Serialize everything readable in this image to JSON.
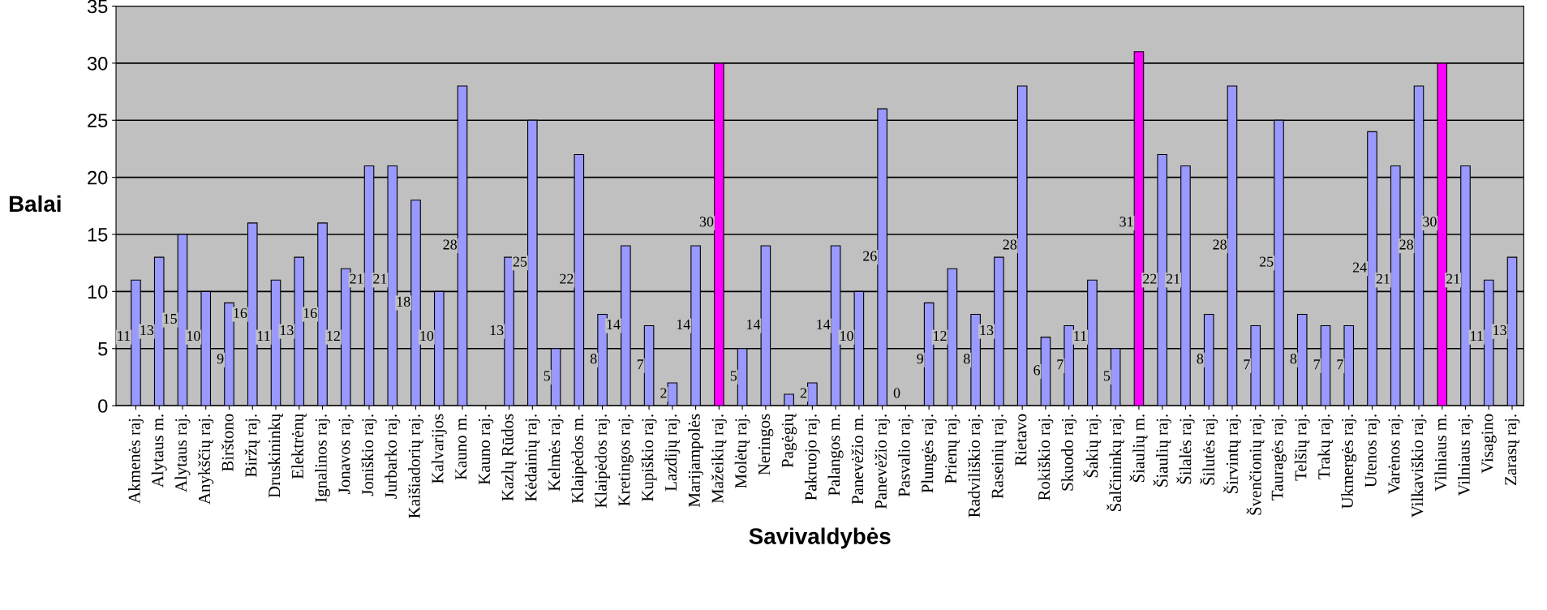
{
  "chart_data": {
    "type": "bar",
    "xlabel": "Savivaldybės",
    "ylabel": "Balai",
    "categories": [
      "Akmenės raj.",
      "Alytaus m.",
      "Alytaus raj.",
      "Anykščių raj.",
      "Birštono",
      "Biržų raj.",
      "Druskininkų",
      "Elektrėnų",
      "Ignalinos raj.",
      "Jonavos raj.",
      "Joniškio raj.",
      "Jurbarko raj.",
      "Kaišiadorių raj.",
      "Kalvarijos",
      "Kauno m.",
      "Kauno raj.",
      "Kazlų Rūdos",
      "Kėdainių raj.",
      "Kelmės raj.",
      "Klaipėdos m.",
      "Klaipėdos raj.",
      "Kretingos raj.",
      "Kupiškio raj.",
      "Lazdijų raj.",
      "Marijampolės",
      "Mažeikių raj.",
      "Molėtų raj.",
      "Neringos",
      "Pagėgių",
      "Pakruojo raj.",
      "Palangos m.",
      "Panevėžio m.",
      "Panevėžio raj.",
      "Pasvalio raj.",
      "Plungės raj.",
      "Prienų raj.",
      "Radviliškio raj.",
      "Raseinių raj.",
      "Rietavo",
      "Rokiškio raj.",
      "Skuodo raj.",
      "Šakių raj.",
      "Šalčininkų raj.",
      "Šiaulių m.",
      "Šiaulių raj.",
      "Šilalės raj.",
      "Šilutės raj.",
      "Širvintų raj.",
      "Švenčionių raj.",
      "Tauragės raj.",
      "Telšių raj.",
      "Trakų raj.",
      "Ukmergės raj.",
      "Utenos raj.",
      "Varėnos raj.",
      "Vilkaviškio raj.",
      "Vilniaus m.",
      "Vilniaus raj.",
      "Visagino",
      "Zarasų raj."
    ],
    "values": [
      11,
      13,
      15,
      10,
      9,
      16,
      11,
      13,
      16,
      12,
      21,
      21,
      18,
      10,
      28,
      null,
      13,
      25,
      5,
      22,
      8,
      14,
      7,
      2,
      14,
      30,
      5,
      14,
      1,
      2,
      14,
      10,
      26,
      0,
      9,
      12,
      8,
      13,
      28,
      6,
      7,
      11,
      5,
      31,
      22,
      21,
      8,
      28,
      7,
      25,
      8,
      7,
      7,
      24,
      21,
      28,
      30,
      21,
      11,
      13
    ],
    "value_labels": [
      "11",
      "13",
      "15",
      "10",
      "9",
      "16",
      "11",
      "13",
      "16",
      "12",
      "21",
      "21",
      "18",
      "10",
      "28",
      null,
      "13",
      "25",
      "5",
      "22",
      "8",
      "14",
      "7",
      "2",
      "14",
      "30",
      "5",
      "14",
      null,
      "2",
      "14",
      "10",
      "26",
      "0",
      "9",
      "12",
      "8",
      "13",
      "28",
      "6",
      "7",
      "11",
      "5",
      "31",
      "22",
      "21",
      "8",
      "28",
      "7",
      "25",
      "8",
      "7",
      "7",
      "24",
      "21",
      "28",
      "30",
      "21",
      "11",
      "13"
    ],
    "colors": [
      "#9999ff",
      "#9999ff",
      "#9999ff",
      "#9999ff",
      "#9999ff",
      "#9999ff",
      "#9999ff",
      "#9999ff",
      "#9999ff",
      "#9999ff",
      "#9999ff",
      "#9999ff",
      "#9999ff",
      "#9999ff",
      "#9999ff",
      "#9999ff",
      "#9999ff",
      "#9999ff",
      "#9999ff",
      "#9999ff",
      "#9999ff",
      "#9999ff",
      "#9999ff",
      "#9999ff",
      "#9999ff",
      "#ff00ff",
      "#9999ff",
      "#9999ff",
      "#9999ff",
      "#9999ff",
      "#9999ff",
      "#9999ff",
      "#9999ff",
      "#9999ff",
      "#9999ff",
      "#9999ff",
      "#9999ff",
      "#9999ff",
      "#9999ff",
      "#9999ff",
      "#9999ff",
      "#9999ff",
      "#9999ff",
      "#ff00ff",
      "#9999ff",
      "#9999ff",
      "#9999ff",
      "#9999ff",
      "#9999ff",
      "#9999ff",
      "#9999ff",
      "#9999ff",
      "#9999ff",
      "#9999ff",
      "#9999ff",
      "#9999ff",
      "#ff00ff",
      "#9999ff",
      "#9999ff",
      "#9999ff"
    ],
    "ylim": [
      0,
      35
    ],
    "yticks": [
      0,
      5,
      10,
      15,
      20,
      25,
      30,
      35
    ],
    "grid": "y",
    "legend": false
  }
}
